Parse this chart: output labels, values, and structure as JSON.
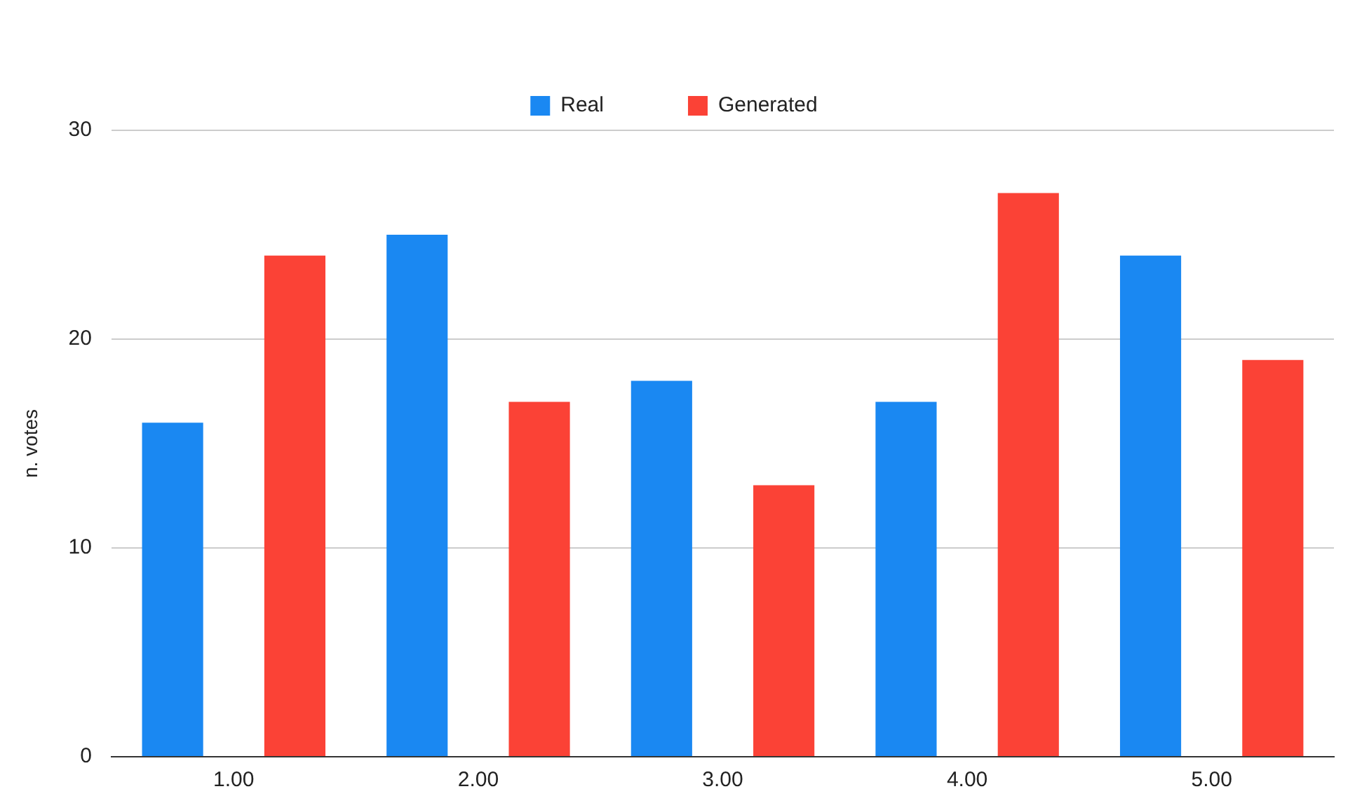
{
  "chart_data": {
    "type": "bar",
    "ylabel": "n. votes",
    "categories": [
      "1.00",
      "2.00",
      "3.00",
      "4.00",
      "5.00"
    ],
    "series": [
      {
        "name": "Real",
        "color": "#1a88f2",
        "values": [
          16,
          25,
          18,
          17,
          24
        ]
      },
      {
        "name": "Generated",
        "color": "#fb4236",
        "values": [
          24,
          17,
          13,
          27,
          19
        ]
      }
    ],
    "ylim": [
      0,
      30
    ],
    "yticks": [
      0,
      10,
      20,
      30
    ],
    "grid": "y",
    "legend": "top"
  }
}
